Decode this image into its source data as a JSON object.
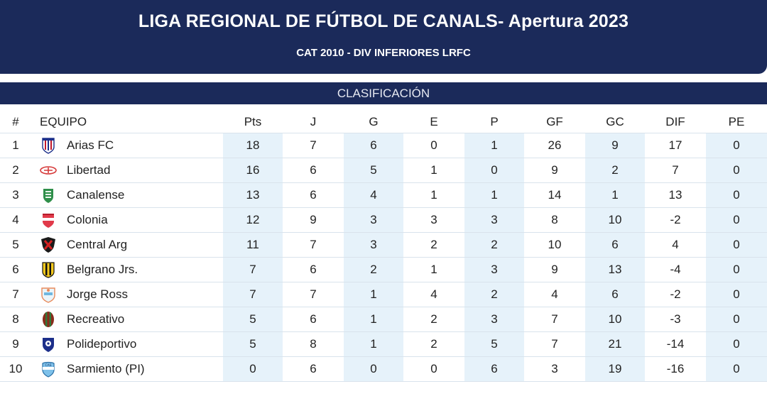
{
  "header": {
    "title": "LIGA REGIONAL DE FÚTBOL DE CANALS- Apertura 2023",
    "subtitle": "CAT 2010 - DIV INFERIORES LRFC"
  },
  "section_title": "CLASIFICACIÓN",
  "columns": [
    "#",
    "EQUIPO",
    "Pts",
    "J",
    "G",
    "E",
    "P",
    "GF",
    "GC",
    "DIF",
    "PE"
  ],
  "rows": [
    {
      "pos": "1",
      "team": "Arias FC",
      "crest": "arias-fc-crest-icon",
      "pts": "18",
      "j": "7",
      "g": "6",
      "e": "0",
      "p": "1",
      "gf": "26",
      "gc": "9",
      "dif": "17",
      "pe": "0"
    },
    {
      "pos": "2",
      "team": "Libertad",
      "crest": "libertad-crest-icon",
      "pts": "16",
      "j": "6",
      "g": "5",
      "e": "1",
      "p": "0",
      "gf": "9",
      "gc": "2",
      "dif": "7",
      "pe": "0"
    },
    {
      "pos": "3",
      "team": "Canalense",
      "crest": "canalense-crest-icon",
      "pts": "13",
      "j": "6",
      "g": "4",
      "e": "1",
      "p": "1",
      "gf": "14",
      "gc": "1",
      "dif": "13",
      "pe": "0"
    },
    {
      "pos": "4",
      "team": "Colonia",
      "crest": "colonia-crest-icon",
      "pts": "12",
      "j": "9",
      "g": "3",
      "e": "3",
      "p": "3",
      "gf": "8",
      "gc": "10",
      "dif": "-2",
      "pe": "0"
    },
    {
      "pos": "5",
      "team": "Central Arg",
      "crest": "central-arg-crest-icon",
      "pts": "11",
      "j": "7",
      "g": "3",
      "e": "2",
      "p": "2",
      "gf": "10",
      "gc": "6",
      "dif": "4",
      "pe": "0"
    },
    {
      "pos": "6",
      "team": "Belgrano Jrs.",
      "crest": "belgrano-jrs-crest-icon",
      "pts": "7",
      "j": "6",
      "g": "2",
      "e": "1",
      "p": "3",
      "gf": "9",
      "gc": "13",
      "dif": "-4",
      "pe": "0"
    },
    {
      "pos": "7",
      "team": "Jorge Ross",
      "crest": "jorge-ross-crest-icon",
      "pts": "7",
      "j": "7",
      "g": "1",
      "e": "4",
      "p": "2",
      "gf": "4",
      "gc": "6",
      "dif": "-2",
      "pe": "0"
    },
    {
      "pos": "8",
      "team": "Recreativo",
      "crest": "recreativo-crest-icon",
      "pts": "5",
      "j": "6",
      "g": "1",
      "e": "2",
      "p": "3",
      "gf": "7",
      "gc": "10",
      "dif": "-3",
      "pe": "0"
    },
    {
      "pos": "9",
      "team": "Polideportivo",
      "crest": "polideportivo-crest-icon",
      "pts": "5",
      "j": "8",
      "g": "1",
      "e": "2",
      "p": "5",
      "gf": "7",
      "gc": "21",
      "dif": "-14",
      "pe": "0"
    },
    {
      "pos": "10",
      "team": "Sarmiento (PI)",
      "crest": "sarmiento-pi-crest-icon",
      "pts": "0",
      "j": "6",
      "g": "0",
      "e": "0",
      "p": "6",
      "gf": "3",
      "gc": "19",
      "dif": "-16",
      "pe": "0"
    }
  ],
  "colors": {
    "header_bg": "#1b2a5a",
    "shaded_column": "#e6f2fa",
    "row_border": "#d9e3ec"
  }
}
